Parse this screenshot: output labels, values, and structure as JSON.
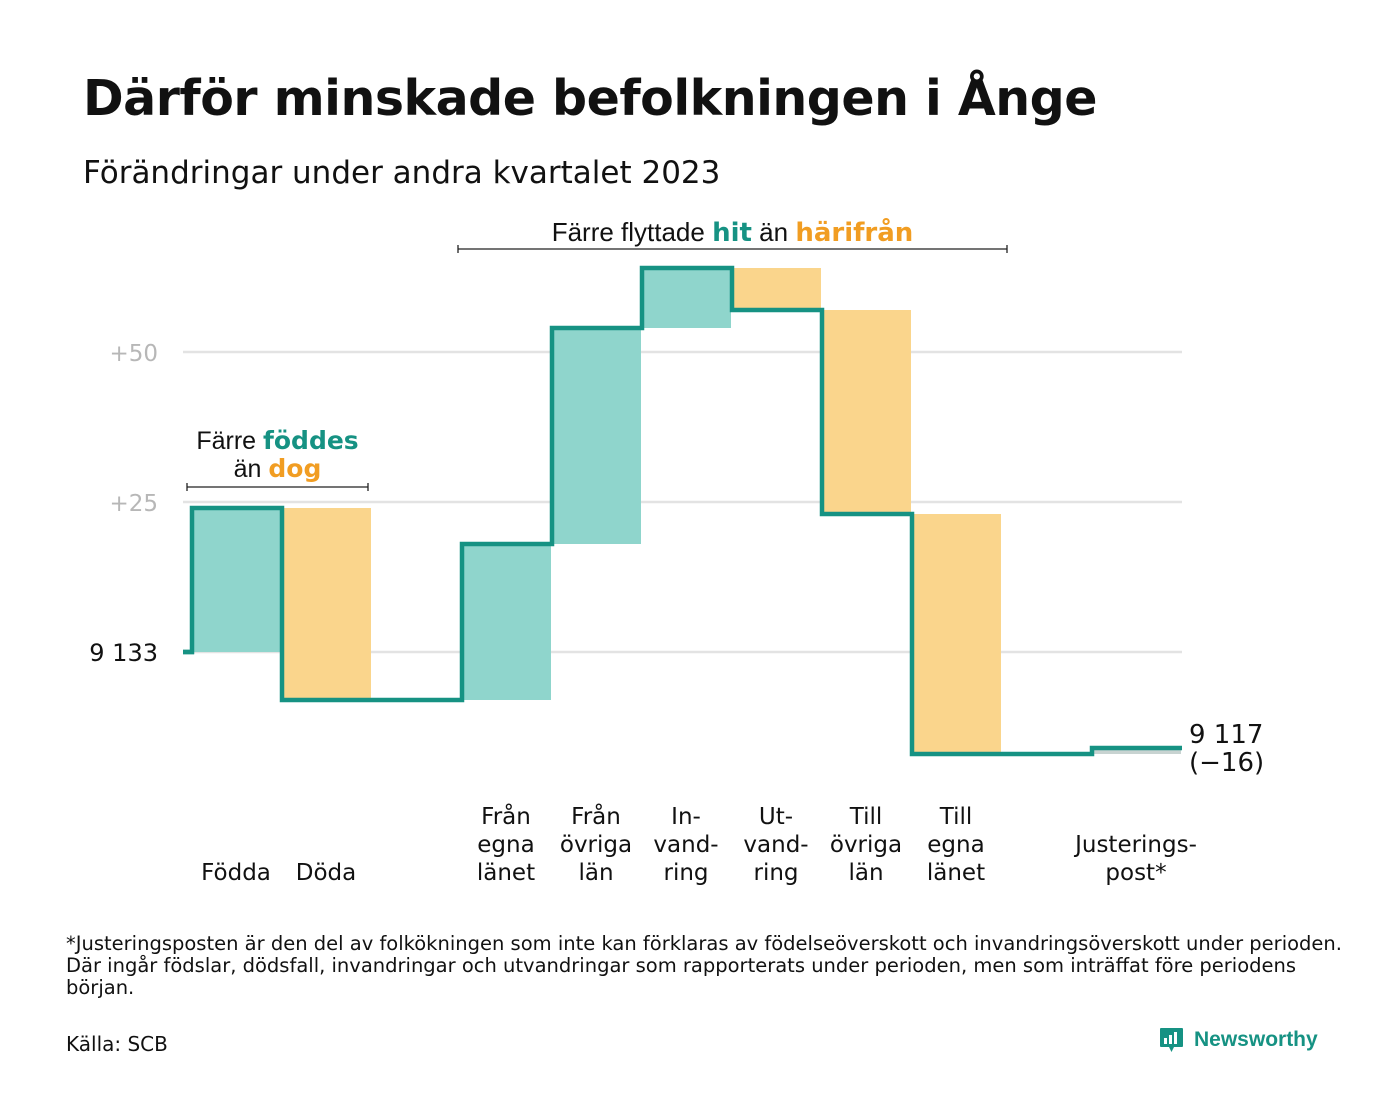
{
  "title": "Därför minskade befolkningen i Ånge",
  "subtitle": "Förändringar under andra kvartalet 2023",
  "chart_data": {
    "type": "waterfall",
    "start_value": 9133,
    "start_label": "9  133",
    "end_value": 9117,
    "end_label": [
      "9 117",
      "(−16)"
    ],
    "y_ticks": [
      {
        "label": "+50",
        "value": 50
      },
      {
        "label": "+25",
        "value": 25
      }
    ],
    "ylim": [
      -20,
      65
    ],
    "steps": [
      {
        "label_lines": [
          "Födda"
        ],
        "value": 24,
        "kind": "in"
      },
      {
        "label_lines": [
          "Döda"
        ],
        "value": -32,
        "kind": "out"
      },
      {
        "label_lines": [],
        "value": 0,
        "kind": "gap"
      },
      {
        "label_lines": [
          "Från",
          "egna",
          "länet"
        ],
        "value": 26,
        "kind": "in"
      },
      {
        "label_lines": [
          "Från",
          "övriga",
          "län"
        ],
        "value": 36,
        "kind": "in"
      },
      {
        "label_lines": [
          "In-",
          "vand-",
          "ring"
        ],
        "value": 10,
        "kind": "in"
      },
      {
        "label_lines": [
          "Ut-",
          "vand-",
          "ring"
        ],
        "value": -7,
        "kind": "out"
      },
      {
        "label_lines": [
          "Till",
          "övriga",
          "län"
        ],
        "value": -34,
        "kind": "out"
      },
      {
        "label_lines": [
          "Till",
          "egna",
          "länet"
        ],
        "value": -40,
        "kind": "out"
      },
      {
        "label_lines": [],
        "value": 0,
        "kind": "gap"
      },
      {
        "label_lines": [
          "Justerings-",
          "post*"
        ],
        "value": 1,
        "kind": "adjust"
      }
    ],
    "annotations": [
      {
        "parts": [
          {
            "text": "Färre ",
            "style": "plain"
          },
          {
            "text": "föddes",
            "style": "teal"
          }
        ],
        "parts2": [
          {
            "text": "än ",
            "style": "plain"
          },
          {
            "text": "dog",
            "style": "orange"
          }
        ],
        "from_step": 0,
        "to_step": 1
      },
      {
        "parts": [
          {
            "text": "Färre flyttade ",
            "style": "plain"
          },
          {
            "text": "hit",
            "style": "teal"
          },
          {
            "text": " än ",
            "style": "plain"
          },
          {
            "text": "härifrån",
            "style": "orange"
          }
        ],
        "from_step": 3,
        "to_step": 8
      }
    ],
    "colors": {
      "increase": "#8fd5cc",
      "decrease": "#fad58c",
      "adjust": "#c8d3d1",
      "line": "#169283",
      "teal_text": "#169283",
      "orange_text": "#f19d22",
      "grid": "#e3e3e3",
      "tick_text": "#b7b7b7"
    }
  },
  "footnote": "*Justeringsposten är den del av folkökningen som inte kan förklaras av födelseöverskott och invandringsöverskott under perioden. Där ingår födslar, dödsfall, invandringar och utvandringar som rapporterats under perioden, men som inträffat före periodens början.",
  "source": "Källa: SCB",
  "brand": {
    "name": "Newsworthy",
    "icon": "newsworthy-logo-icon",
    "color": "#169283"
  }
}
